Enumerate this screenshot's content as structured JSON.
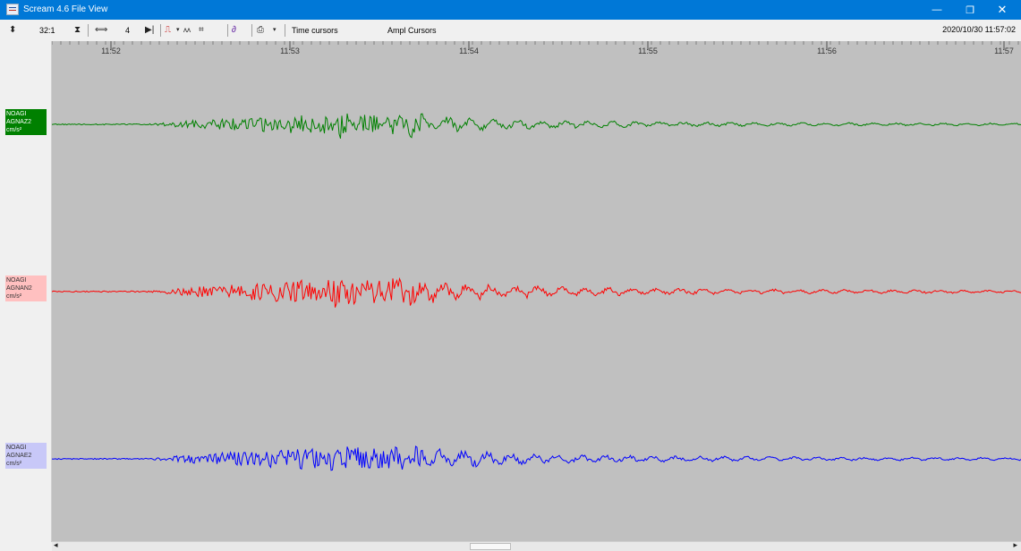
{
  "window": {
    "title": "Scream 4.6 File View",
    "controls": {
      "minimize": "—",
      "restore": "❐",
      "close": "✕"
    }
  },
  "toolbar": {
    "compression": "32:1",
    "gain": "4",
    "time_cursors": "Time cursors",
    "ampl_cursors": "Ampl Cursors",
    "datetime": "2020/10/30 11:57:02"
  },
  "time_axis": {
    "ticks": [
      "11:52",
      "11:53",
      "11:54",
      "11:55",
      "11:56",
      "11:57"
    ]
  },
  "channels": [
    {
      "station": "NOAGI",
      "component": "AGNAZ2",
      "units": "cm/s²",
      "color": "#008000",
      "label_bg": "#008000",
      "label_fg": "#ffffff"
    },
    {
      "station": "NOAGI",
      "component": "AGNAN2",
      "units": "cm/s²",
      "color": "#ff0000",
      "label_bg": "#ffc0c0",
      "label_fg": "#333333"
    },
    {
      "station": "NOAGI",
      "component": "AGNAE2",
      "units": "cm/s²",
      "color": "#0000ff",
      "label_bg": "#c8c8f8",
      "label_fg": "#333333"
    }
  ],
  "colors": {
    "plot_background": "#c0c0c0",
    "titlebar": "#0078d7"
  }
}
